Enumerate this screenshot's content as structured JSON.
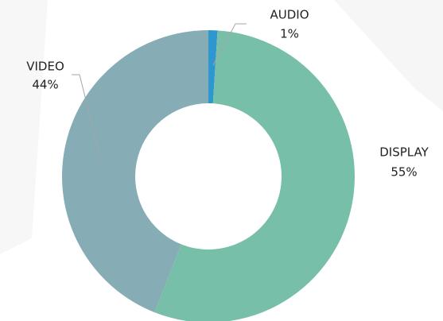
{
  "chart_data": {
    "type": "donut",
    "categories": [
      "AUDIO",
      "DISPLAY",
      "VIDEO"
    ],
    "values": [
      1,
      55,
      44
    ],
    "value_labels": [
      "1%",
      "55%",
      "44%"
    ],
    "colors": [
      "#2e97cf",
      "#77bfa8",
      "#86acb6"
    ]
  }
}
